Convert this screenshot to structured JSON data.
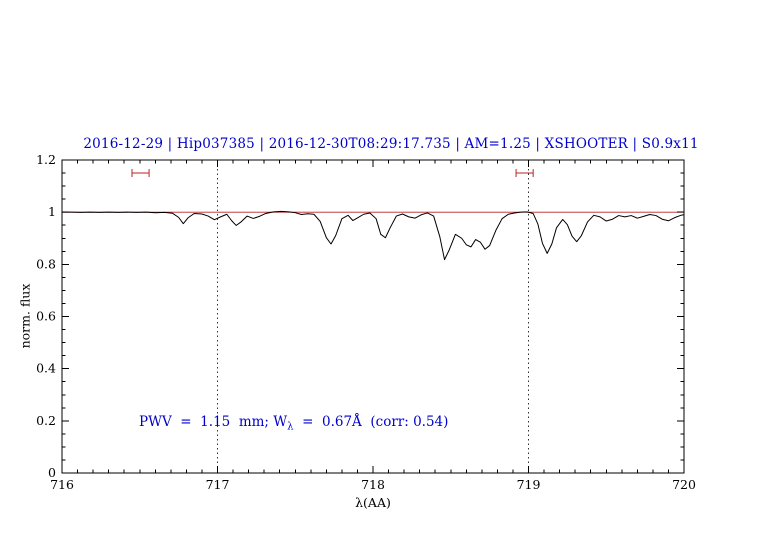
{
  "figure": {
    "title_color": "#0000cc",
    "annotation_color": "#0000cc",
    "continuum_color": "#bb2222",
    "spectrum_color": "#000000"
  },
  "chart_data": {
    "type": "line",
    "title": "2016-12-29 | Hip037385 | 2016-12-30T08:29:17.735 | AM=1.25 | XSHOOTER | S0.9x11",
    "xlabel": "λ(AA)",
    "ylabel": "norm. flux",
    "xlim": [
      716,
      720
    ],
    "ylim": [
      0,
      1.2
    ],
    "x_ticks": {
      "values": [
        716,
        717,
        718,
        719,
        720
      ],
      "labels": [
        "716",
        "717",
        "718",
        "719",
        "720"
      ],
      "minor_step": 0.1
    },
    "y_ticks": {
      "values": [
        0,
        0.2,
        0.4,
        0.6,
        0.8,
        1,
        1.2
      ],
      "labels": [
        "0",
        "0.2",
        "0.4",
        "0.6",
        "0.8",
        "1",
        "1.2"
      ],
      "minor_step": 0.05
    },
    "grid": "off",
    "legend": "none",
    "vertical_dotted_lines": [
      717,
      719
    ],
    "continuum_line": {
      "y": 1.0,
      "color": "#bb2222"
    },
    "range_markers": [
      {
        "x_min": 716.45,
        "x_max": 716.56,
        "y": 1.15,
        "color": "#bb2222"
      },
      {
        "x_min": 718.92,
        "x_max": 719.03,
        "y": 1.15,
        "color": "#bb2222"
      }
    ],
    "annotation": {
      "x": 716.5,
      "y": 0.2,
      "color": "#0000cc",
      "text": "PWV = 1.15 mm; Wλ = 0.67Å (corr: 0.54)",
      "prefix": "PWV  =  1.15  mm; W",
      "sub": "λ",
      "suffix": "  =  0.67Å  (corr: 0.54)"
    },
    "series": [
      {
        "name": "spectrum",
        "color": "#000000",
        "points": [
          [
            716.0,
            1.0
          ],
          [
            716.06,
            1.0
          ],
          [
            716.12,
            0.999
          ],
          [
            716.18,
            1.0
          ],
          [
            716.24,
            0.999
          ],
          [
            716.3,
            1.0
          ],
          [
            716.36,
            0.999
          ],
          [
            716.42,
            1.0
          ],
          [
            716.48,
            0.999
          ],
          [
            716.54,
            1.0
          ],
          [
            716.6,
            0.998
          ],
          [
            716.66,
            0.999
          ],
          [
            716.71,
            0.996
          ],
          [
            716.75,
            0.98
          ],
          [
            716.78,
            0.956
          ],
          [
            716.81,
            0.978
          ],
          [
            716.85,
            0.995
          ],
          [
            716.9,
            0.993
          ],
          [
            716.94,
            0.985
          ],
          [
            716.98,
            0.971
          ],
          [
            717.02,
            0.982
          ],
          [
            717.06,
            0.992
          ],
          [
            717.09,
            0.968
          ],
          [
            717.12,
            0.949
          ],
          [
            717.15,
            0.962
          ],
          [
            717.19,
            0.985
          ],
          [
            717.23,
            0.976
          ],
          [
            717.27,
            0.984
          ],
          [
            717.31,
            0.995
          ],
          [
            717.36,
            1.001
          ],
          [
            717.41,
            1.003
          ],
          [
            717.46,
            1.001
          ],
          [
            717.5,
            0.998
          ],
          [
            717.54,
            0.991
          ],
          [
            717.58,
            0.994
          ],
          [
            717.62,
            0.992
          ],
          [
            717.66,
            0.965
          ],
          [
            717.7,
            0.902
          ],
          [
            717.73,
            0.878
          ],
          [
            717.76,
            0.91
          ],
          [
            717.8,
            0.975
          ],
          [
            717.84,
            0.988
          ],
          [
            717.87,
            0.968
          ],
          [
            717.9,
            0.978
          ],
          [
            717.94,
            0.992
          ],
          [
            717.98,
            0.997
          ],
          [
            718.02,
            0.975
          ],
          [
            718.05,
            0.915
          ],
          [
            718.08,
            0.902
          ],
          [
            718.11,
            0.94
          ],
          [
            718.15,
            0.985
          ],
          [
            718.19,
            0.993
          ],
          [
            718.23,
            0.982
          ],
          [
            718.27,
            0.977
          ],
          [
            718.31,
            0.99
          ],
          [
            718.35,
            0.997
          ],
          [
            718.39,
            0.985
          ],
          [
            718.43,
            0.905
          ],
          [
            718.46,
            0.818
          ],
          [
            718.49,
            0.855
          ],
          [
            718.53,
            0.915
          ],
          [
            718.57,
            0.9
          ],
          [
            718.6,
            0.875
          ],
          [
            718.63,
            0.867
          ],
          [
            718.66,
            0.895
          ],
          [
            718.69,
            0.885
          ],
          [
            718.72,
            0.858
          ],
          [
            718.75,
            0.872
          ],
          [
            718.79,
            0.93
          ],
          [
            718.83,
            0.975
          ],
          [
            718.87,
            0.992
          ],
          [
            718.91,
            0.997
          ],
          [
            718.95,
            1.0
          ],
          [
            718.99,
            1.001
          ],
          [
            719.03,
            0.995
          ],
          [
            719.06,
            0.955
          ],
          [
            719.09,
            0.88
          ],
          [
            719.12,
            0.842
          ],
          [
            719.15,
            0.878
          ],
          [
            719.18,
            0.94
          ],
          [
            719.22,
            0.972
          ],
          [
            719.25,
            0.952
          ],
          [
            719.28,
            0.908
          ],
          [
            719.31,
            0.887
          ],
          [
            719.34,
            0.91
          ],
          [
            719.38,
            0.963
          ],
          [
            719.42,
            0.988
          ],
          [
            719.46,
            0.982
          ],
          [
            719.5,
            0.966
          ],
          [
            719.54,
            0.973
          ],
          [
            719.58,
            0.987
          ],
          [
            719.62,
            0.982
          ],
          [
            719.66,
            0.987
          ],
          [
            719.7,
            0.977
          ],
          [
            719.74,
            0.984
          ],
          [
            719.78,
            0.991
          ],
          [
            719.82,
            0.987
          ],
          [
            719.86,
            0.973
          ],
          [
            719.9,
            0.967
          ],
          [
            719.94,
            0.979
          ],
          [
            719.98,
            0.988
          ],
          [
            720.0,
            0.99
          ]
        ]
      }
    ]
  }
}
